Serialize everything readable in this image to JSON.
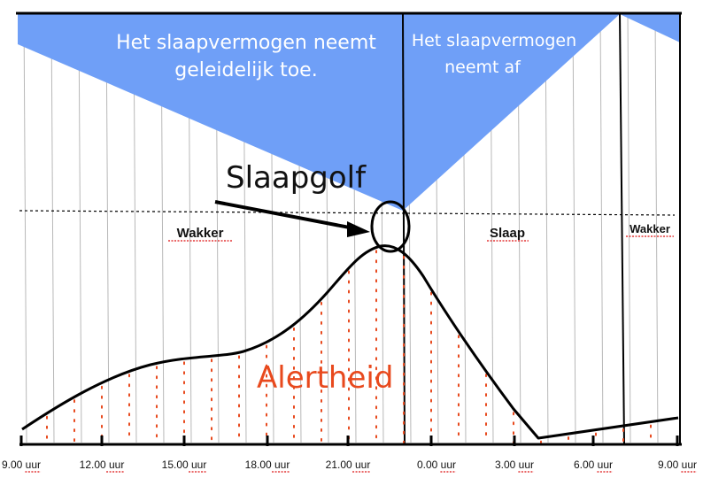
{
  "banner": {
    "left_line1": "Het slaapvermogen neemt",
    "left_line2": "geleidelijk toe.",
    "right_line1": "Het slaapvermogen",
    "right_line2": "neemt af"
  },
  "labels": {
    "slaapgolf": "Slaapgolf",
    "wakker_left": "Wakker",
    "slaap": "Slaap",
    "wakker_right": "Wakker",
    "alertheid": "Alertheid"
  },
  "time_axis": {
    "ticks": [
      "9.00 uur",
      "12.00 uur",
      "15.00 uur",
      "18.00 uur",
      "21.00 uur",
      "0.00 uur",
      "3.00 uur",
      "6.00 uur",
      "9.00 uur"
    ]
  },
  "colors": {
    "sleep_pressure_fill": "#6f9ff7",
    "alertness_curve": "#000000",
    "alertness_dots": "#e8491d",
    "alertheid_text": "#e8491d",
    "grid_lines": "#b8b8b8"
  },
  "chart_data": {
    "type": "area",
    "x_unit": "hour of day",
    "series": [
      {
        "name": "Alertheid",
        "x": [
          "9.00 uur",
          "10.30 uur",
          "12.00 uur",
          "13.30 uur",
          "15.00 uur",
          "16.30 uur",
          "18.00 uur",
          "19.30 uur",
          "21.00 uur",
          "22.30 uur",
          "0.00 uur",
          "1.30 uur",
          "3.00 uur",
          "4.30 uur",
          "6.00 uur",
          "7.30 uur",
          "9.00 uur"
        ],
        "relative_level": [
          0.07,
          0.2,
          0.31,
          0.38,
          0.42,
          0.46,
          0.55,
          0.73,
          0.9,
          1.0,
          0.95,
          0.65,
          0.25,
          0.0,
          0.03,
          0.06,
          0.07
        ]
      },
      {
        "name": "Het slaapvermogen",
        "x": [
          "9.00 uur",
          "23.00 uur",
          "7.00 uur",
          "9.00 uur"
        ],
        "relative_level": [
          0.2,
          1.0,
          0.0,
          0.15
        ]
      }
    ]
  }
}
